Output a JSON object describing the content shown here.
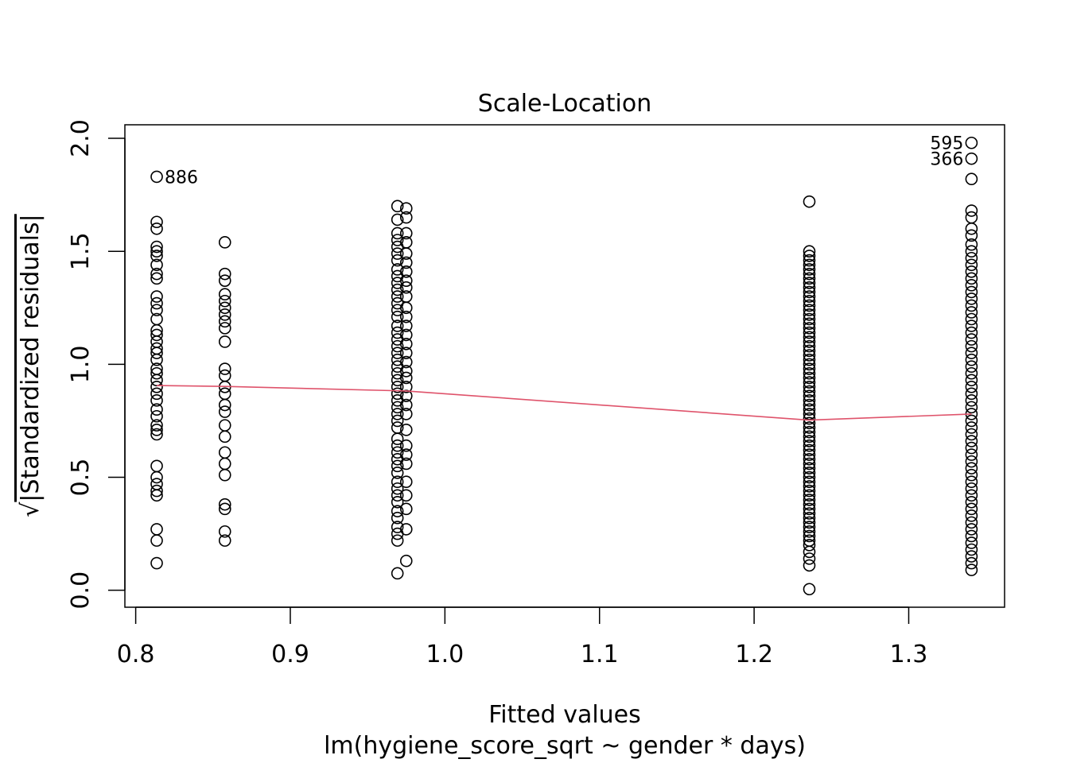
{
  "chart_data": {
    "type": "scatter",
    "title": "Scale-Location",
    "xlabel": "Fitted values",
    "sublabel": "lm(hygiene_score_sqrt ~ gender * days)",
    "ylabel_radical": "√",
    "ylabel": "|Standardized residuals|",
    "xlim": [
      0.793,
      1.362
    ],
    "ylim": [
      -0.075,
      2.06
    ],
    "xticks": [
      0.8,
      0.9,
      1.0,
      1.1,
      1.2,
      1.3
    ],
    "xtick_labels": [
      "0.8",
      "0.9",
      "1.0",
      "1.1",
      "1.2",
      "1.3"
    ],
    "yticks": [
      0.0,
      0.5,
      1.0,
      1.5,
      2.0
    ],
    "ytick_labels": [
      "0.0",
      "0.5",
      "1.0",
      "1.5",
      "2.0"
    ],
    "grid": false,
    "point_color": "#000000",
    "smooth_color": "#DF536B",
    "groups": [
      {
        "x": 0.8136,
        "y": [
          1.83,
          1.63,
          1.6,
          1.52,
          1.5,
          1.48,
          1.44,
          1.4,
          1.38,
          1.3,
          1.27,
          1.24,
          1.2,
          1.15,
          1.13,
          1.1,
          1.07,
          1.05,
          1.02,
          0.98,
          0.96,
          0.93,
          0.9,
          0.87,
          0.84,
          0.8,
          0.77,
          0.73,
          0.71,
          0.69,
          0.55,
          0.5,
          0.47,
          0.44,
          0.42,
          0.27,
          0.22,
          0.12
        ]
      },
      {
        "x": 0.8577,
        "y": [
          1.54,
          1.4,
          1.37,
          1.31,
          1.28,
          1.25,
          1.22,
          1.19,
          1.16,
          1.1,
          0.98,
          0.95,
          0.9,
          0.87,
          0.82,
          0.79,
          0.73,
          0.68,
          0.61,
          0.56,
          0.51,
          0.38,
          0.36,
          0.26,
          0.22
        ]
      },
      {
        "x": 0.9693,
        "y": [
          1.7,
          1.64,
          1.58,
          1.55,
          1.52,
          1.49,
          1.46,
          1.42,
          1.39,
          1.36,
          1.33,
          1.3,
          1.27,
          1.24,
          1.21,
          1.17,
          1.14,
          1.11,
          1.08,
          1.05,
          1.02,
          0.99,
          0.96,
          0.93,
          0.9,
          0.87,
          0.84,
          0.81,
          0.78,
          0.75,
          0.72,
          0.67,
          0.64,
          0.61,
          0.58,
          0.55,
          0.52,
          0.48,
          0.45,
          0.42,
          0.39,
          0.35,
          0.32,
          0.28,
          0.25,
          0.22,
          0.075
        ]
      },
      {
        "x": 0.975,
        "y": [
          1.69,
          1.65,
          1.58,
          1.54,
          1.49,
          1.45,
          1.41,
          1.37,
          1.34,
          1.3,
          1.25,
          1.21,
          1.17,
          1.13,
          1.09,
          1.05,
          1.01,
          0.97,
          0.94,
          0.9,
          0.86,
          0.82,
          0.78,
          0.71,
          0.64,
          0.6,
          0.56,
          0.48,
          0.42,
          0.36,
          0.27,
          0.13
        ]
      },
      {
        "x": 1.2357,
        "y": [
          1.72,
          1.5,
          1.48,
          1.46,
          1.44,
          1.42,
          1.4,
          1.38,
          1.36,
          1.34,
          1.32,
          1.3,
          1.28,
          1.26,
          1.24,
          1.22,
          1.2,
          1.18,
          1.16,
          1.14,
          1.12,
          1.1,
          1.08,
          1.06,
          1.04,
          1.02,
          1.0,
          0.98,
          0.96,
          0.94,
          0.92,
          0.9,
          0.88,
          0.86,
          0.84,
          0.82,
          0.8,
          0.78,
          0.76,
          0.74,
          0.72,
          0.7,
          0.68,
          0.66,
          0.64,
          0.62,
          0.6,
          0.58,
          0.56,
          0.54,
          0.52,
          0.5,
          0.48,
          0.46,
          0.44,
          0.42,
          0.4,
          0.38,
          0.36,
          0.34,
          0.32,
          0.3,
          0.28,
          0.26,
          0.24,
          0.22,
          0.2,
          0.17,
          0.14,
          0.11,
          0.005
        ]
      },
      {
        "x": 1.3406,
        "y": [
          1.98,
          1.91,
          1.82,
          1.68,
          1.65,
          1.6,
          1.57,
          1.53,
          1.5,
          1.47,
          1.44,
          1.41,
          1.38,
          1.35,
          1.32,
          1.29,
          1.26,
          1.23,
          1.2,
          1.17,
          1.14,
          1.11,
          1.08,
          1.05,
          1.02,
          0.99,
          0.96,
          0.93,
          0.9,
          0.87,
          0.84,
          0.81,
          0.78,
          0.75,
          0.72,
          0.69,
          0.66,
          0.63,
          0.6,
          0.57,
          0.54,
          0.51,
          0.48,
          0.45,
          0.42,
          0.39,
          0.36,
          0.33,
          0.3,
          0.27,
          0.24,
          0.21,
          0.18,
          0.15,
          0.12,
          0.09
        ]
      }
    ],
    "smooth_line": {
      "x": [
        0.8136,
        0.8577,
        0.975,
        1.2357,
        1.3406
      ],
      "y": [
        0.906,
        0.902,
        0.882,
        0.753,
        0.78
      ]
    },
    "annotations": [
      {
        "label": "886",
        "x": 0.8136,
        "y": 1.83,
        "side": "right"
      },
      {
        "label": "595",
        "x": 1.3406,
        "y": 1.98,
        "side": "left"
      },
      {
        "label": "366",
        "x": 1.3406,
        "y": 1.91,
        "side": "left"
      }
    ]
  }
}
